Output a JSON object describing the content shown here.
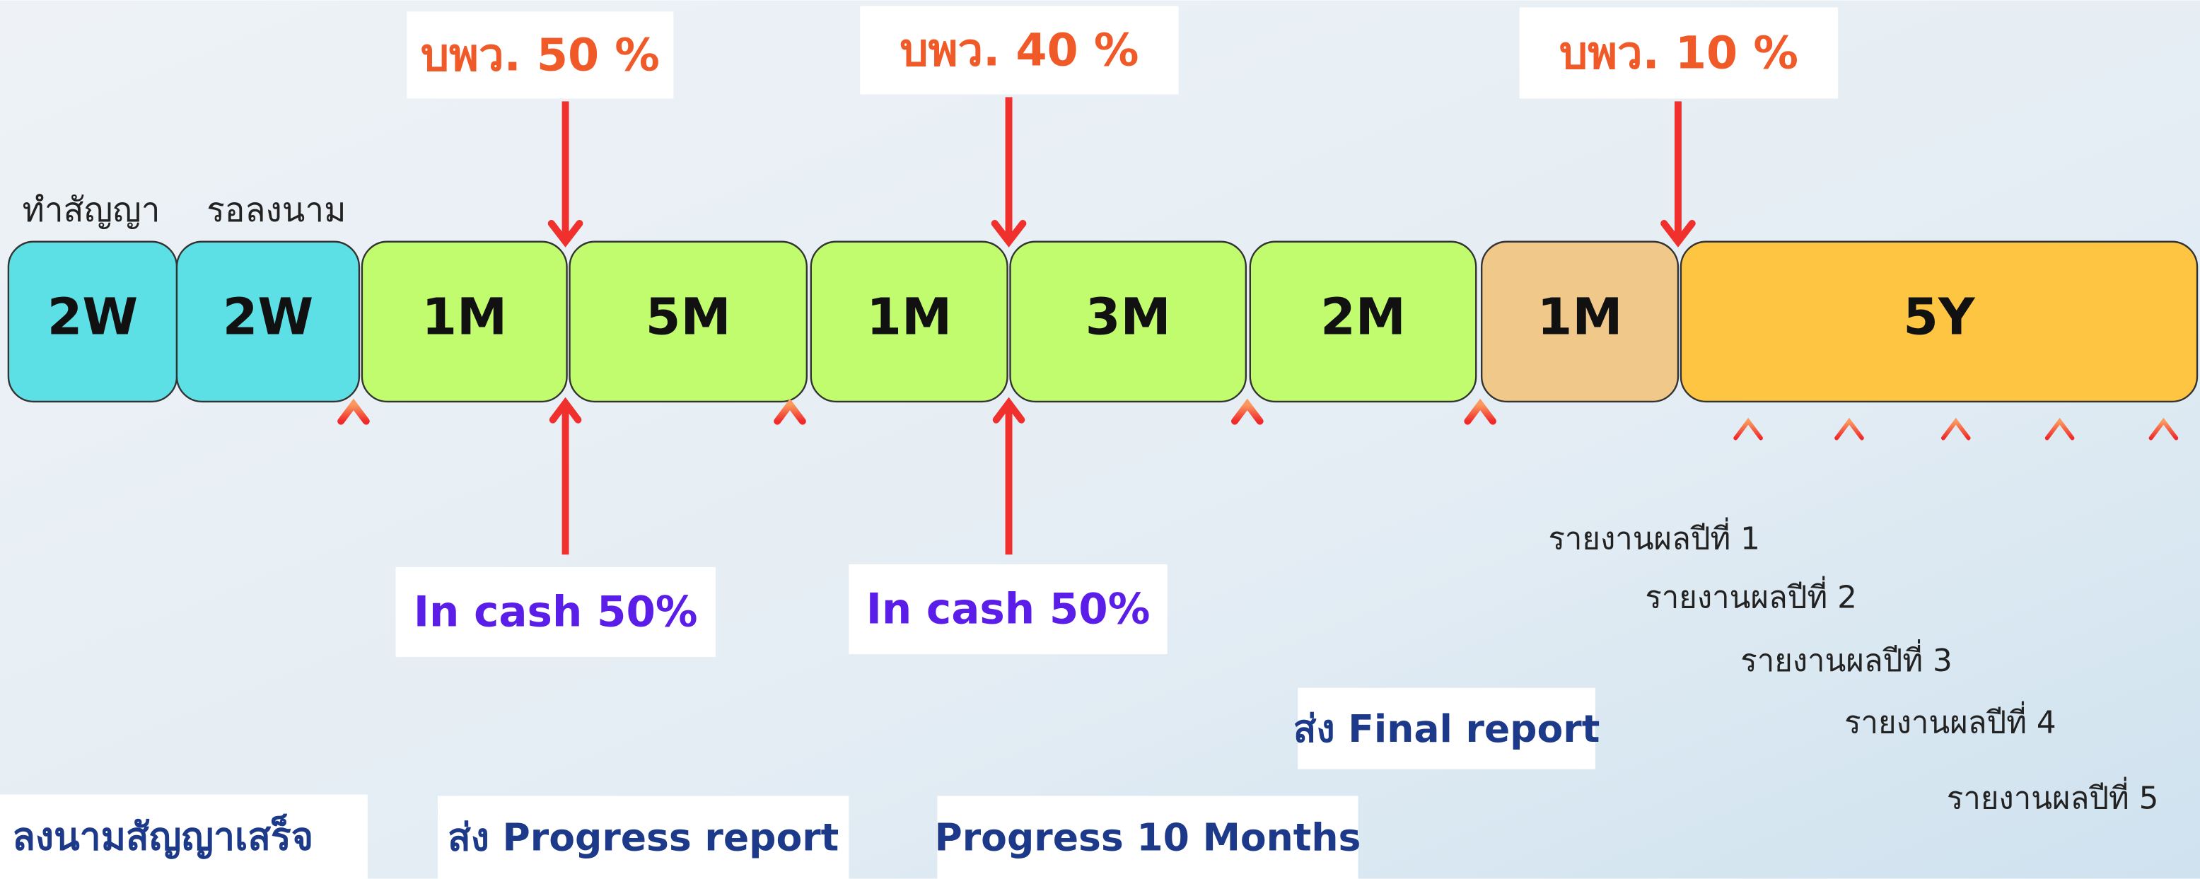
{
  "segments": [
    "2W",
    "2W",
    "1M",
    "5M",
    "1M",
    "3M",
    "2M",
    "1M",
    "5Y"
  ],
  "top_labels": [
    "ทำสัญญา",
    "รอลงนาม"
  ],
  "payments": [
    "บพว. 50 %",
    "บพว. 40 %",
    "บพว. 10 %"
  ],
  "in_cash": [
    "In cash 50%",
    "In cash 50%"
  ],
  "milestones": [
    "ลงนามสัญญาเสร็จ",
    "ส่ง Progress report",
    "Progress 10 Months",
    "ส่ง Final report"
  ],
  "year_reports": [
    "รายงานผลปีที่ 1",
    "รายงานผลปีที่ 2",
    "รายงานผลปีที่ 3",
    "รายงานผลปีที่  4",
    "รายงานผลปีที่  5"
  ]
}
